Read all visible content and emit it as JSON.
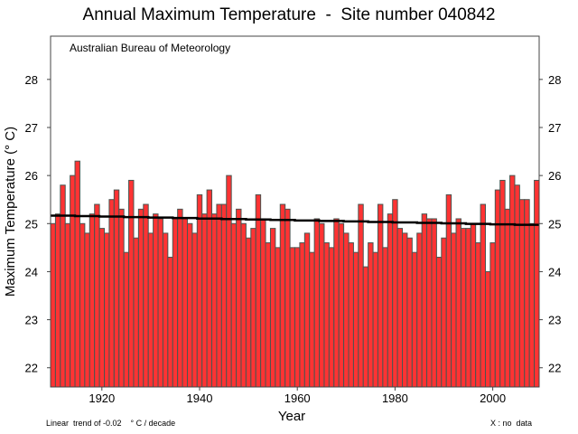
{
  "chart_data": {
    "type": "bar",
    "title": "Annual Maximum Temperature  -  Site number 040842",
    "annotation": "Australian Bureau of Meteorology",
    "xlabel": "Year",
    "ylabel": "Maximum Temperature (° C)",
    "xlim": [
      1909.5,
      2009.5
    ],
    "ylim": [
      21.6,
      28.9
    ],
    "xticks": [
      1920,
      1940,
      1960,
      1980,
      2000
    ],
    "yticks": [
      22,
      23,
      24,
      25,
      26,
      27,
      28
    ],
    "grid": false,
    "bar_color": "#ff3333",
    "bar_edge_color": "#4a5550",
    "x_start": 1910,
    "values": [
      25.0,
      25.2,
      25.8,
      25.0,
      26.0,
      26.3,
      25.0,
      24.8,
      25.2,
      25.4,
      24.9,
      24.8,
      25.5,
      25.7,
      25.3,
      24.4,
      25.9,
      24.7,
      25.3,
      25.4,
      24.8,
      25.2,
      25.1,
      24.8,
      24.3,
      25.1,
      25.3,
      25.1,
      25.0,
      24.8,
      25.6,
      25.2,
      25.7,
      25.2,
      25.4,
      25.4,
      26.0,
      25.0,
      25.3,
      25.0,
      24.7,
      24.9,
      25.6,
      25.1,
      24.6,
      24.9,
      24.5,
      25.4,
      25.3,
      24.5,
      24.5,
      24.6,
      24.8,
      24.4,
      25.1,
      25.0,
      24.6,
      24.5,
      25.1,
      25.0,
      24.8,
      24.6,
      24.4,
      25.4,
      24.1,
      24.6,
      24.4,
      25.4,
      24.5,
      25.2,
      25.5,
      24.9,
      24.8,
      24.7,
      24.4,
      24.8,
      25.2,
      25.1,
      25.1,
      24.3,
      24.7,
      25.6,
      24.8,
      25.1,
      24.9,
      24.9,
      25.0,
      24.6,
      25.4,
      24.0,
      24.6,
      25.7,
      25.9,
      25.3,
      26.0,
      25.8,
      25.5,
      25.5,
      25.0,
      25.9
    ],
    "trend": {
      "start": 25.17,
      "end": 24.97,
      "color": "#000000"
    },
    "trend_text": "Linear  trend of -0.02    ° C / decade",
    "legend_text": "X : no  data"
  }
}
